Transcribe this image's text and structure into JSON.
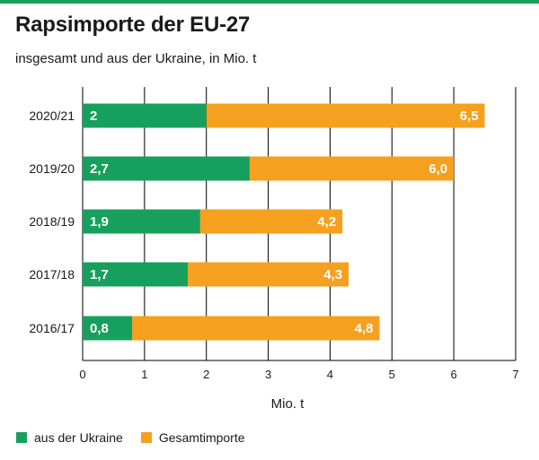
{
  "colors": {
    "ukraine": "#17a05d",
    "gesamt": "#f5a01e",
    "accent_rule": "#17a05d",
    "grid": "#000000"
  },
  "chart_data": {
    "type": "bar",
    "orientation": "horizontal",
    "layout": "stacked",
    "title": "Rapsimporte der EU-27",
    "subtitle": "insgesamt und aus der Ukraine, in Mio. t",
    "xlabel": "Mio. t",
    "ylabel": "",
    "xlim": [
      0,
      7
    ],
    "xticks": [
      "0",
      "1",
      "2",
      "3",
      "4",
      "5",
      "6",
      "7"
    ],
    "grid": "vertical",
    "legend_position": "bottom-left",
    "categories": [
      "2020/21",
      "2019/20",
      "2018/19",
      "2017/18",
      "2016/17"
    ],
    "series": [
      {
        "name": "aus der Ukraine",
        "values": [
          2.0,
          2.7,
          1.9,
          1.7,
          0.8
        ],
        "labels": [
          "2",
          "2,7",
          "1,9",
          "1,7",
          "0,8"
        ]
      },
      {
        "name": "Gesamtimporte",
        "values": [
          6.5,
          6.0,
          4.2,
          4.3,
          4.8
        ],
        "labels": [
          "6,5",
          "6,0",
          "4,2",
          "4,3",
          "4,8"
        ]
      }
    ]
  }
}
